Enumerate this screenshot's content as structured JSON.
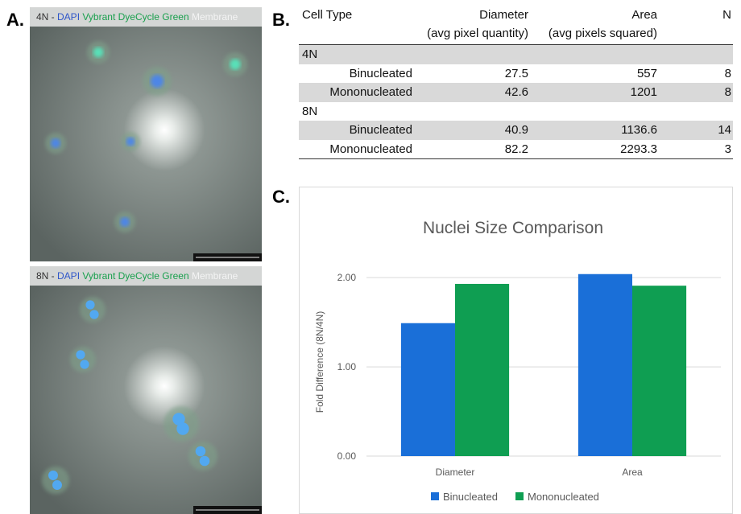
{
  "panel_a": {
    "label": "A.",
    "images": [
      {
        "caption": [
          "4N -",
          "DAPI",
          "Vybrant DyeCycle Green",
          "Membrane"
        ]
      },
      {
        "caption": [
          "8N -",
          "DAPI",
          "Vybrant DyeCycle Green",
          "Membrane"
        ]
      }
    ]
  },
  "panel_b": {
    "label": "B.",
    "table": {
      "header": [
        "Cell Type",
        "Diameter",
        "Area",
        "N"
      ],
      "subheader": [
        "(avg pixel quantity)",
        "(avg pixels squared)"
      ],
      "groups": [
        {
          "name": "4N",
          "rows": [
            [
              "Binucleated",
              27.5,
              557,
              8
            ],
            [
              "Mononucleated",
              42.6,
              1201,
              8
            ]
          ]
        },
        {
          "name": "8N",
          "rows": [
            [
              "Binucleated",
              40.9,
              1136.6,
              14
            ],
            [
              "Mononucleated",
              82.2,
              2293.3,
              3
            ]
          ]
        }
      ]
    }
  },
  "panel_c": {
    "label": "C."
  },
  "chart_data": {
    "type": "bar",
    "title": "Nuclei Size Comparison",
    "y_label": "Fold Difference (8N/4N)",
    "categories": [
      "Diameter",
      "Area"
    ],
    "series": [
      {
        "name": "Binucleated",
        "color": "#1a6fd8",
        "values": [
          1.49,
          2.04
        ]
      },
      {
        "name": "Mononucleated",
        "color": "#0f9e52",
        "values": [
          1.93,
          1.91
        ]
      }
    ],
    "ylim": [
      0,
      2.2
    ],
    "yticks": [
      {
        "value": 0,
        "label": "0.00"
      },
      {
        "value": 1,
        "label": "1.00"
      },
      {
        "value": 2,
        "label": "2.00"
      }
    ],
    "grid": true,
    "legend": "bottom"
  }
}
